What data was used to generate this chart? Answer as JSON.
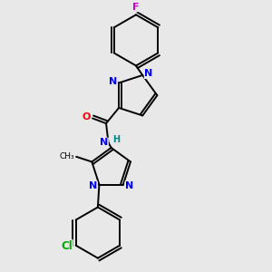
{
  "background_color": "#e8e8e8",
  "atom_colors": {
    "N": "#0000ff",
    "O": "#ff0000",
    "F": "#cc00cc",
    "Cl": "#00aa00",
    "C": "#000000",
    "H": "#008888"
  },
  "font_size": 8.0,
  "line_width": 1.4,
  "figsize": [
    3.0,
    3.0
  ],
  "dpi": 100,
  "xlim": [
    0.15,
    0.85
  ],
  "ylim": [
    0.02,
    0.97
  ]
}
